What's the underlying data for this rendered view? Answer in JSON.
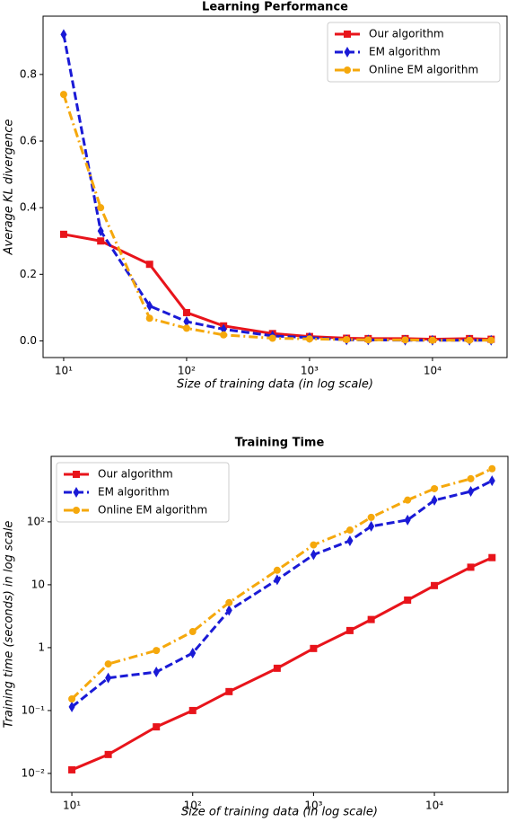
{
  "chart_data": [
    {
      "type": "line",
      "title": "Learning Performance",
      "xlabel": "Size of training data (in log scale)",
      "ylabel": "Average KL divergence",
      "xscale": "log",
      "yscale": "linear",
      "legend": "upper right",
      "x": [
        10,
        20,
        50,
        100,
        200,
        500,
        1000,
        2000,
        3000,
        6000,
        10000,
        20000,
        30000
      ],
      "xlim": [
        6.8,
        40400
      ],
      "ylim": [
        -0.05,
        0.975
      ],
      "xticks": [
        {
          "value": 10,
          "label": "10¹"
        },
        {
          "value": 100,
          "label": "10²"
        },
        {
          "value": 1000,
          "label": "10³"
        },
        {
          "value": 10000,
          "label": "10⁴"
        }
      ],
      "yticks": [
        {
          "value": 0,
          "label": "0.0"
        },
        0.2,
        0.4,
        0.6,
        0.8
      ],
      "series": [
        {
          "name": "Our algorithm",
          "color": "#e8141b",
          "linestyle": "solid",
          "marker": "square",
          "values": [
            0.32,
            0.3,
            0.23,
            0.085,
            0.045,
            0.022,
            0.013,
            0.008,
            0.007,
            0.007,
            0.005,
            0.007,
            0.005
          ]
        },
        {
          "name": "EM algorithm",
          "color": "#1a1ad6",
          "linestyle": "dashed",
          "marker": "diamond",
          "values": [
            0.92,
            0.33,
            0.105,
            0.058,
            0.035,
            0.015,
            0.01,
            0.003,
            0.003,
            0.002,
            0.002,
            0.002,
            0.002
          ]
        },
        {
          "name": "Online EM algorithm",
          "color": "#f5a80c",
          "linestyle": "dashdot",
          "marker": "circle",
          "values": [
            0.74,
            0.4,
            0.068,
            0.038,
            0.018,
            0.008,
            0.006,
            0.004,
            0.003,
            0.003,
            0.002,
            0.002,
            0.002
          ]
        }
      ]
    },
    {
      "type": "line",
      "title": "Training Time",
      "xlabel": "Size of training data (in log scale)",
      "ylabel": "Training time (seconds) in log scale",
      "xscale": "log",
      "yscale": "log",
      "legend": "upper left",
      "x": [
        10,
        20,
        50,
        100,
        200,
        500,
        1000,
        2000,
        3000,
        6000,
        10000,
        20000,
        30000
      ],
      "xlim": [
        6.74,
        40600
      ],
      "ylim": [
        0.005,
        1100
      ],
      "xticks": [
        {
          "value": 10,
          "label": "10¹"
        },
        {
          "value": 100,
          "label": "10²"
        },
        {
          "value": 1000,
          "label": "10³"
        },
        {
          "value": 10000,
          "label": "10⁴"
        }
      ],
      "yticks": [
        {
          "value": 0.01,
          "label": "10⁻²"
        },
        {
          "value": 0.1,
          "label": "10⁻¹"
        },
        1,
        10,
        {
          "value": 100,
          "label": "10²"
        }
      ],
      "series": [
        {
          "name": "Our algorithm",
          "color": "#e8141b",
          "linestyle": "solid",
          "marker": "square",
          "values": [
            0.0114,
            0.02,
            0.055,
            0.1,
            0.2,
            0.47,
            0.97,
            1.87,
            2.8,
            5.7,
            9.7,
            19,
            27
          ]
        },
        {
          "name": "EM algorithm",
          "color": "#1a1ad6",
          "linestyle": "dashed",
          "marker": "diamond",
          "values": [
            0.114,
            0.33,
            0.41,
            0.82,
            3.9,
            12,
            30,
            50,
            85,
            107,
            220,
            305,
            450
          ]
        },
        {
          "name": "Online EM algorithm",
          "color": "#f5a80c",
          "linestyle": "dashdot",
          "marker": "circle",
          "values": [
            0.153,
            0.55,
            0.9,
            1.8,
            5.2,
            17,
            43,
            74,
            118,
            222,
            337,
            485,
            700
          ]
        }
      ]
    }
  ]
}
